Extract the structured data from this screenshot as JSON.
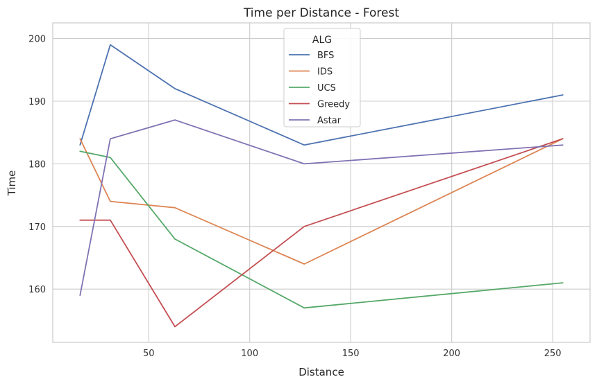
{
  "chart_data": {
    "type": "line",
    "title": "Time per Distance - Forest",
    "xlabel": "Distance",
    "ylabel": "Time",
    "xlim": [
      2.5,
      268.5
    ],
    "ylim": [
      151.5,
      202.5
    ],
    "xticks": [
      50,
      100,
      150,
      200,
      250
    ],
    "yticks": [
      160,
      170,
      180,
      190,
      200
    ],
    "grid": true,
    "legend": {
      "title": "ALG",
      "placement": "top-center"
    },
    "x": [
      16,
      31,
      63,
      127,
      255
    ],
    "series": [
      {
        "name": "BFS",
        "color": "#4c72b0",
        "values": [
          183,
          199,
          192,
          183,
          191
        ]
      },
      {
        "name": "IDS",
        "color": "#dd8452",
        "values": [
          184,
          174,
          173,
          164,
          184
        ]
      },
      {
        "name": "UCS",
        "color": "#55a868",
        "values": [
          182,
          181,
          168,
          157,
          161
        ]
      },
      {
        "name": "Greedy",
        "color": "#c44e52",
        "values": [
          171,
          171,
          154,
          170,
          184
        ]
      },
      {
        "name": "Astar",
        "color": "#8172b3",
        "values": [
          159,
          184,
          187,
          180,
          183
        ]
      }
    ]
  }
}
